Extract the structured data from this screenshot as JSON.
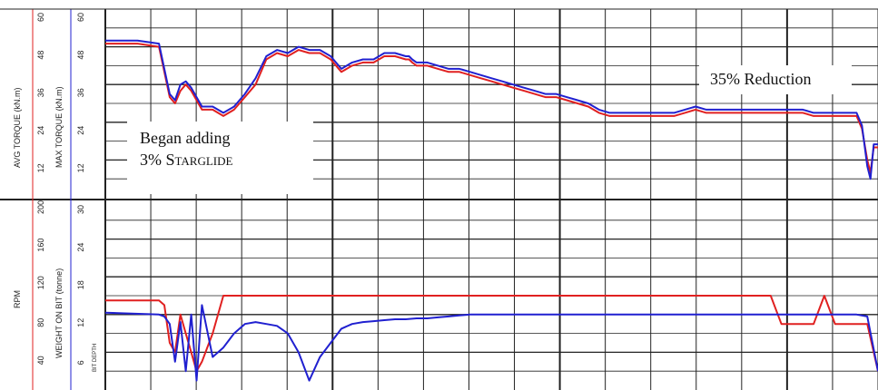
{
  "chart_data": [
    {
      "type": "line",
      "panel": "top",
      "x": [
        0,
        3,
        5,
        5.5,
        6,
        6.5,
        7,
        7.5,
        8,
        9,
        10,
        11,
        12,
        13,
        14,
        15,
        16,
        17,
        18,
        19,
        20,
        21,
        22,
        23,
        24,
        25,
        26,
        27,
        28,
        28.3,
        28.6,
        29,
        30,
        31,
        32,
        33,
        34,
        35,
        36,
        37,
        38,
        39,
        40,
        41,
        42,
        43,
        44,
        45,
        46,
        47,
        48,
        49,
        50,
        51,
        52,
        53,
        54,
        55,
        56,
        57,
        58,
        59,
        60,
        61,
        62,
        63,
        64,
        65,
        66,
        67,
        68,
        69,
        70,
        70.5,
        71,
        71.3,
        71.6,
        72
      ],
      "ylim_left": [
        0,
        60
      ],
      "ylim_right": [
        0,
        60
      ],
      "ticks_left": [
        "12",
        "24",
        "36",
        "48",
        "60"
      ],
      "ticks_right": [
        "12",
        "24",
        "36",
        "48",
        "60"
      ],
      "ylabel_left": "AVG TORQUE (kN.m)",
      "ylabel_right": "MAX TORQUE (kN.m)",
      "series": [
        {
          "color": "#e02020",
          "values": [
            49,
            49,
            48,
            40,
            32,
            30,
            34,
            36,
            34,
            28,
            28,
            26,
            28,
            32,
            36,
            44,
            46,
            45,
            47,
            46,
            46,
            44,
            40,
            42,
            43,
            43,
            45,
            45,
            44,
            44,
            43,
            42,
            42,
            41,
            40,
            40,
            39,
            38,
            37,
            36,
            35,
            34,
            33,
            32,
            32,
            31,
            30,
            29,
            27,
            26,
            26,
            26,
            26,
            26,
            26,
            26,
            27,
            28,
            27,
            27,
            27,
            27,
            27,
            27,
            27,
            27,
            27,
            27,
            26,
            26,
            26,
            26,
            26,
            22,
            12,
            8,
            16,
            16
          ]
        },
        {
          "color": "#2020d0",
          "values": [
            50,
            50,
            49,
            41,
            33,
            31,
            36,
            37,
            35,
            29,
            29,
            27,
            29,
            33,
            38,
            45,
            47,
            46,
            48,
            47,
            47,
            45,
            41,
            43,
            44,
            44,
            46,
            46,
            45,
            45,
            44,
            43,
            43,
            42,
            41,
            41,
            40,
            39,
            38,
            37,
            36,
            35,
            34,
            33,
            33,
            32,
            31,
            30,
            28,
            27,
            27,
            27,
            27,
            27,
            27,
            27,
            28,
            29,
            28,
            28,
            28,
            28,
            28,
            28,
            28,
            28,
            28,
            28,
            27,
            27,
            27,
            27,
            27,
            23,
            10,
            6,
            17,
            17
          ]
        }
      ]
    },
    {
      "type": "line",
      "panel": "bottom",
      "x": [
        0,
        5,
        5.5,
        6,
        6.5,
        7,
        7.5,
        8,
        8.5,
        9,
        10,
        11,
        12,
        13,
        14,
        15,
        16,
        17,
        18,
        19,
        20,
        21,
        22,
        23,
        24,
        25,
        26,
        27,
        28,
        29,
        30,
        31,
        32,
        33,
        34,
        35,
        36,
        37,
        38,
        39,
        40,
        41,
        42,
        43,
        44,
        45,
        46,
        47,
        48,
        49,
        50,
        51,
        52,
        53,
        54,
        55,
        56,
        57,
        58,
        59,
        60,
        61,
        62,
        63,
        64,
        65,
        66,
        67,
        68,
        69,
        70,
        71,
        72
      ],
      "ylim_left": [
        0,
        200
      ],
      "ylim_right": [
        0,
        30
      ],
      "ticks_left": [
        "40",
        "80",
        "120",
        "160",
        "200"
      ],
      "ticks_right": [
        "6",
        "12",
        "18",
        "24",
        "30"
      ],
      "ylabel_left": "RPM",
      "ylabel_right": "WEIGHT ON BIT (tonne)",
      "ylabel_extra": "BIT DEPTH",
      "series": [
        {
          "color": "#e02020",
          "values": [
            95,
            95,
            90,
            50,
            40,
            80,
            60,
            40,
            20,
            30,
            60,
            100,
            100,
            100,
            100,
            100,
            100,
            100,
            100,
            100,
            100,
            100,
            100,
            100,
            100,
            100,
            100,
            100,
            100,
            100,
            100,
            100,
            100,
            100,
            100,
            100,
            100,
            100,
            100,
            100,
            100,
            100,
            100,
            100,
            100,
            100,
            100,
            100,
            100,
            100,
            100,
            100,
            100,
            100,
            100,
            100,
            100,
            100,
            100,
            100,
            100,
            100,
            100,
            70,
            70,
            70,
            70,
            100,
            70,
            70,
            70,
            70,
            20
          ]
        },
        {
          "color": "#2020d0",
          "values": [
            82,
            80,
            78,
            70,
            30,
            72,
            20,
            80,
            10,
            90,
            35,
            45,
            60,
            70,
            72,
            70,
            68,
            60,
            40,
            10,
            35,
            50,
            65,
            70,
            72,
            73,
            74,
            75,
            75,
            76,
            76,
            77,
            78,
            79,
            80,
            80,
            80,
            80,
            80,
            80,
            80,
            80,
            80,
            80,
            80,
            80,
            80,
            80,
            80,
            80,
            80,
            80,
            80,
            80,
            80,
            80,
            80,
            80,
            80,
            80,
            80,
            80,
            80,
            80,
            80,
            80,
            80,
            80,
            80,
            80,
            80,
            78,
            20
          ]
        }
      ]
    }
  ],
  "annotations": {
    "began_line1": "Began adding",
    "began_line2_prefix": "3% ",
    "began_line2_product": "Starglide",
    "reduction": "35% Reduction"
  },
  "colors": {
    "avg_torque": "#e02020",
    "max_torque": "#2020d0",
    "rpm": "#e02020",
    "wob": "#2020d0",
    "grid": "#222222"
  }
}
